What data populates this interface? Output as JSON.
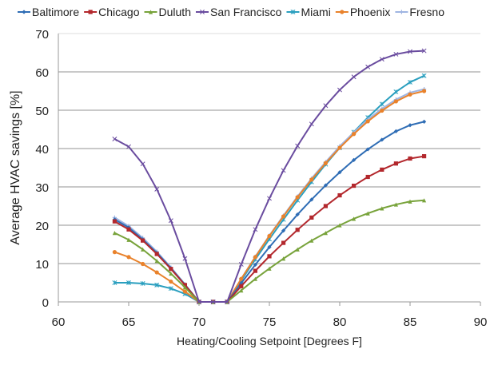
{
  "chart_data": {
    "type": "line",
    "title": "",
    "xlabel": "Heating/Cooling Setpoint [Degrees F]",
    "ylabel": "Average HVAC savings [%]",
    "xlim": [
      60,
      90
    ],
    "ylim": [
      0,
      70
    ],
    "xticks": [
      60,
      65,
      70,
      75,
      80,
      85,
      90
    ],
    "yticks": [
      0,
      10,
      20,
      30,
      40,
      50,
      60,
      70
    ],
    "grid": "horizontal",
    "legend_position": "top",
    "x": [
      64,
      65,
      66,
      67,
      68,
      69,
      70,
      71,
      72,
      73,
      74,
      75,
      76,
      77,
      78,
      79,
      80,
      81,
      82,
      83,
      84,
      85,
      86
    ],
    "series": [
      {
        "name": "Baltimore",
        "color": "#2f6db5",
        "marker": "diamond",
        "values": [
          21.5,
          19.4,
          16.3,
          12.8,
          8.8,
          4.5,
          0,
          0,
          0,
          4.9,
          9.7,
          14.3,
          18.6,
          22.8,
          26.7,
          30.4,
          33.8,
          37.0,
          39.8,
          42.3,
          44.5,
          46.1,
          47.0
        ]
      },
      {
        "name": "Chicago",
        "color": "#b3282d",
        "marker": "square",
        "values": [
          21.0,
          18.9,
          16.0,
          12.5,
          8.6,
          4.4,
          0,
          0,
          0,
          4.1,
          8.1,
          11.9,
          15.4,
          18.8,
          22.0,
          25.0,
          27.8,
          30.3,
          32.6,
          34.5,
          36.1,
          37.4,
          38.0
        ]
      },
      {
        "name": "Duluth",
        "color": "#78a33b",
        "marker": "triangle",
        "values": [
          18.0,
          16.2,
          13.7,
          10.7,
          7.4,
          3.8,
          0,
          0,
          0,
          3.0,
          6.0,
          8.7,
          11.3,
          13.7,
          16.0,
          18.0,
          20.0,
          21.7,
          23.1,
          24.4,
          25.4,
          26.2,
          26.5
        ]
      },
      {
        "name": "San Francisco",
        "color": "#6a4c9f",
        "marker": "x",
        "values": [
          42.5,
          40.5,
          36.0,
          29.4,
          21.2,
          11.3,
          0,
          0,
          0,
          9.8,
          18.9,
          27.0,
          34.3,
          40.7,
          46.4,
          51.2,
          55.3,
          58.7,
          61.3,
          63.3,
          64.6,
          65.3,
          65.5
        ]
      },
      {
        "name": "Miami",
        "color": "#2a9fbf",
        "marker": "star",
        "values": [
          5.0,
          5.0,
          4.8,
          4.4,
          3.5,
          2.1,
          0,
          0,
          0,
          5.6,
          11.1,
          16.4,
          21.5,
          26.5,
          31.3,
          35.9,
          40.2,
          44.3,
          48.1,
          51.6,
          54.8,
          57.3,
          59.0
        ]
      },
      {
        "name": "Phoenix",
        "color": "#e9822b",
        "marker": "circle",
        "values": [
          13.0,
          11.7,
          9.9,
          7.7,
          5.3,
          2.7,
          0,
          0,
          0,
          6.0,
          11.7,
          17.2,
          22.3,
          27.3,
          31.9,
          36.2,
          40.2,
          43.8,
          47.1,
          49.9,
          52.3,
          54.1,
          55.0
        ]
      },
      {
        "name": "Fresno",
        "color": "#9fb5e2",
        "marker": "plus",
        "values": [
          22.0,
          19.8,
          16.7,
          13.1,
          9.0,
          4.6,
          0,
          0,
          0,
          6.0,
          11.8,
          17.3,
          22.5,
          27.5,
          32.2,
          36.5,
          40.6,
          44.2,
          47.6,
          50.4,
          52.8,
          54.6,
          55.5
        ]
      }
    ]
  }
}
